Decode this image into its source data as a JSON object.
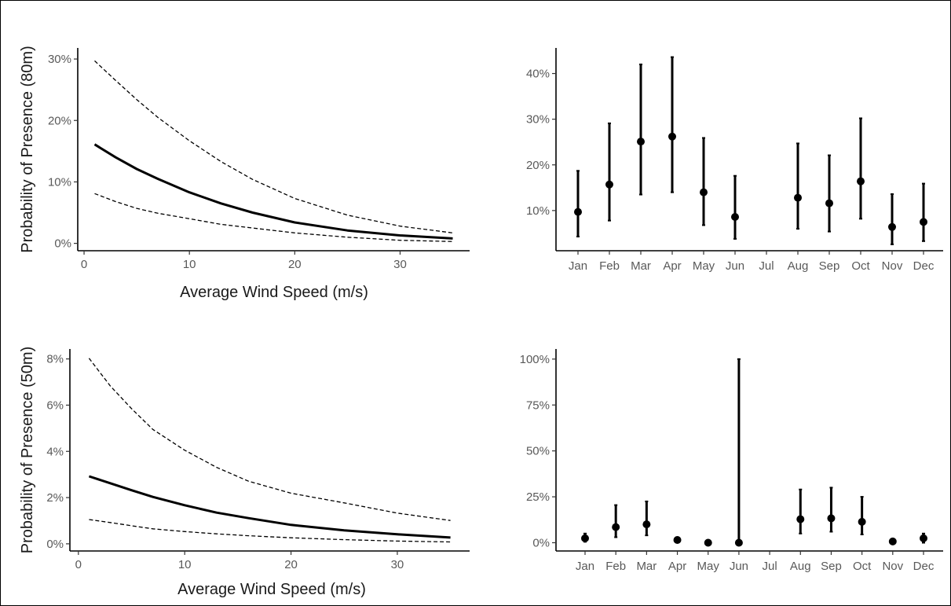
{
  "colors": {
    "line": "#000000",
    "tick_text": "#595959",
    "axis_title": "#1a1a1a",
    "background": "#ffffff"
  },
  "chart_data": [
    {
      "id": "wind80",
      "type": "line",
      "xlabel": "Average Wind Speed (m/s)",
      "ylabel": "Probability of Presence (80m)",
      "xlim": [
        -0.6,
        36.6
      ],
      "ylim": [
        -0.012,
        0.318
      ],
      "x_ticks": [
        0,
        10,
        20,
        30
      ],
      "x_tick_labels": [
        "0",
        "10",
        "20",
        "30"
      ],
      "y_ticks": [
        0,
        0.1,
        0.2,
        0.3
      ],
      "y_tick_labels": [
        "0%",
        "10%",
        "20%",
        "30%"
      ],
      "grid": false,
      "series": [
        {
          "style": "solid",
          "x": [
            1,
            3,
            5,
            7,
            10,
            13,
            16,
            20,
            25,
            30,
            35
          ],
          "y": [
            0.161,
            0.14,
            0.121,
            0.105,
            0.083,
            0.065,
            0.05,
            0.034,
            0.021,
            0.013,
            0.008
          ]
        },
        {
          "style": "dashed",
          "x": [
            1,
            3,
            5,
            7,
            10,
            13,
            16,
            20,
            25,
            30,
            35
          ],
          "y": [
            0.297,
            0.265,
            0.234,
            0.205,
            0.167,
            0.133,
            0.104,
            0.073,
            0.046,
            0.028,
            0.017
          ]
        },
        {
          "style": "dashed",
          "x": [
            1,
            3,
            5,
            7,
            10,
            13,
            16,
            20,
            25,
            30,
            35
          ],
          "y": [
            0.081,
            0.068,
            0.057,
            0.049,
            0.04,
            0.031,
            0.025,
            0.017,
            0.01,
            0.005,
            0.003
          ]
        }
      ]
    },
    {
      "id": "month80",
      "type": "scatter",
      "xlabel": "",
      "ylabel": "",
      "categories": [
        "Jan",
        "Feb",
        "Mar",
        "Apr",
        "May",
        "Jun",
        "Jul",
        "Aug",
        "Sep",
        "Oct",
        "Nov",
        "Dec"
      ],
      "values": [
        0.097,
        0.157,
        0.251,
        0.262,
        0.14,
        0.086,
        null,
        0.128,
        0.116,
        0.164,
        0.064,
        0.075
      ],
      "lower": [
        0.043,
        0.078,
        0.135,
        0.14,
        0.068,
        0.038,
        null,
        0.06,
        0.054,
        0.082,
        0.026,
        0.033
      ],
      "upper": [
        0.187,
        0.291,
        0.42,
        0.436,
        0.259,
        0.176,
        null,
        0.247,
        0.221,
        0.302,
        0.136,
        0.159
      ],
      "ylim": [
        0.012,
        0.456
      ],
      "y_ticks": [
        0.1,
        0.2,
        0.3,
        0.4
      ],
      "y_tick_labels": [
        "10%",
        "20%",
        "30%",
        "40%"
      ],
      "grid": false
    },
    {
      "id": "wind50",
      "type": "line",
      "xlabel": "Average Wind Speed (m/s)",
      "ylabel": "Probability of Presence (50m)",
      "xlim": [
        -0.8,
        36.8
      ],
      "ylim": [
        -0.0031,
        0.0843
      ],
      "x_ticks": [
        0,
        10,
        20,
        30
      ],
      "x_tick_labels": [
        "0",
        "10",
        "20",
        "30"
      ],
      "y_ticks": [
        0,
        0.02,
        0.04,
        0.06,
        0.08
      ],
      "y_tick_labels": [
        "0%",
        "2%",
        "4%",
        "6%",
        "8%"
      ],
      "grid": false,
      "series": [
        {
          "style": "solid",
          "x": [
            1,
            3,
            5,
            7,
            10,
            13,
            16,
            20,
            25,
            30,
            35
          ],
          "y": [
            0.0292,
            0.0262,
            0.0232,
            0.0203,
            0.0167,
            0.0135,
            0.0111,
            0.0082,
            0.0058,
            0.0041,
            0.0027
          ]
        },
        {
          "style": "dashed",
          "x": [
            1,
            3,
            5,
            7,
            10,
            13,
            16,
            20,
            25,
            30,
            35
          ],
          "y": [
            0.0803,
            0.0683,
            0.0585,
            0.0495,
            0.0405,
            0.0331,
            0.0271,
            0.0219,
            0.0177,
            0.0133,
            0.0101
          ]
        },
        {
          "style": "dashed",
          "x": [
            1,
            3,
            5,
            7,
            10,
            13,
            16,
            20,
            25,
            30,
            35
          ],
          "y": [
            0.0105,
            0.0092,
            0.0078,
            0.0065,
            0.0053,
            0.0043,
            0.0035,
            0.0026,
            0.0018,
            0.0012,
            0.0008
          ]
        }
      ]
    },
    {
      "id": "month50",
      "type": "scatter",
      "xlabel": "",
      "ylabel": "",
      "categories": [
        "Jan",
        "Feb",
        "Mar",
        "Apr",
        "May",
        "Jun",
        "Jul",
        "Aug",
        "Sep",
        "Oct",
        "Nov",
        "Dec"
      ],
      "values": [
        0.024,
        0.085,
        0.1,
        0.015,
        0.0,
        0.0,
        null,
        0.128,
        0.133,
        0.114,
        0.007,
        0.024
      ],
      "lower": [
        0.005,
        0.03,
        0.04,
        0.0,
        0.0,
        0.0,
        null,
        0.05,
        0.06,
        0.045,
        0.0,
        0.0
      ],
      "upper": [
        0.05,
        0.205,
        0.225,
        0.025,
        0.0,
        1.0,
        null,
        0.29,
        0.3,
        0.25,
        0.012,
        0.05
      ],
      "ylim": [
        -0.045,
        1.055
      ],
      "y_ticks": [
        0,
        0.25,
        0.5,
        0.75,
        1.0
      ],
      "y_tick_labels": [
        "0%",
        "25%",
        "50%",
        "75%",
        "100%"
      ],
      "grid": false
    }
  ]
}
